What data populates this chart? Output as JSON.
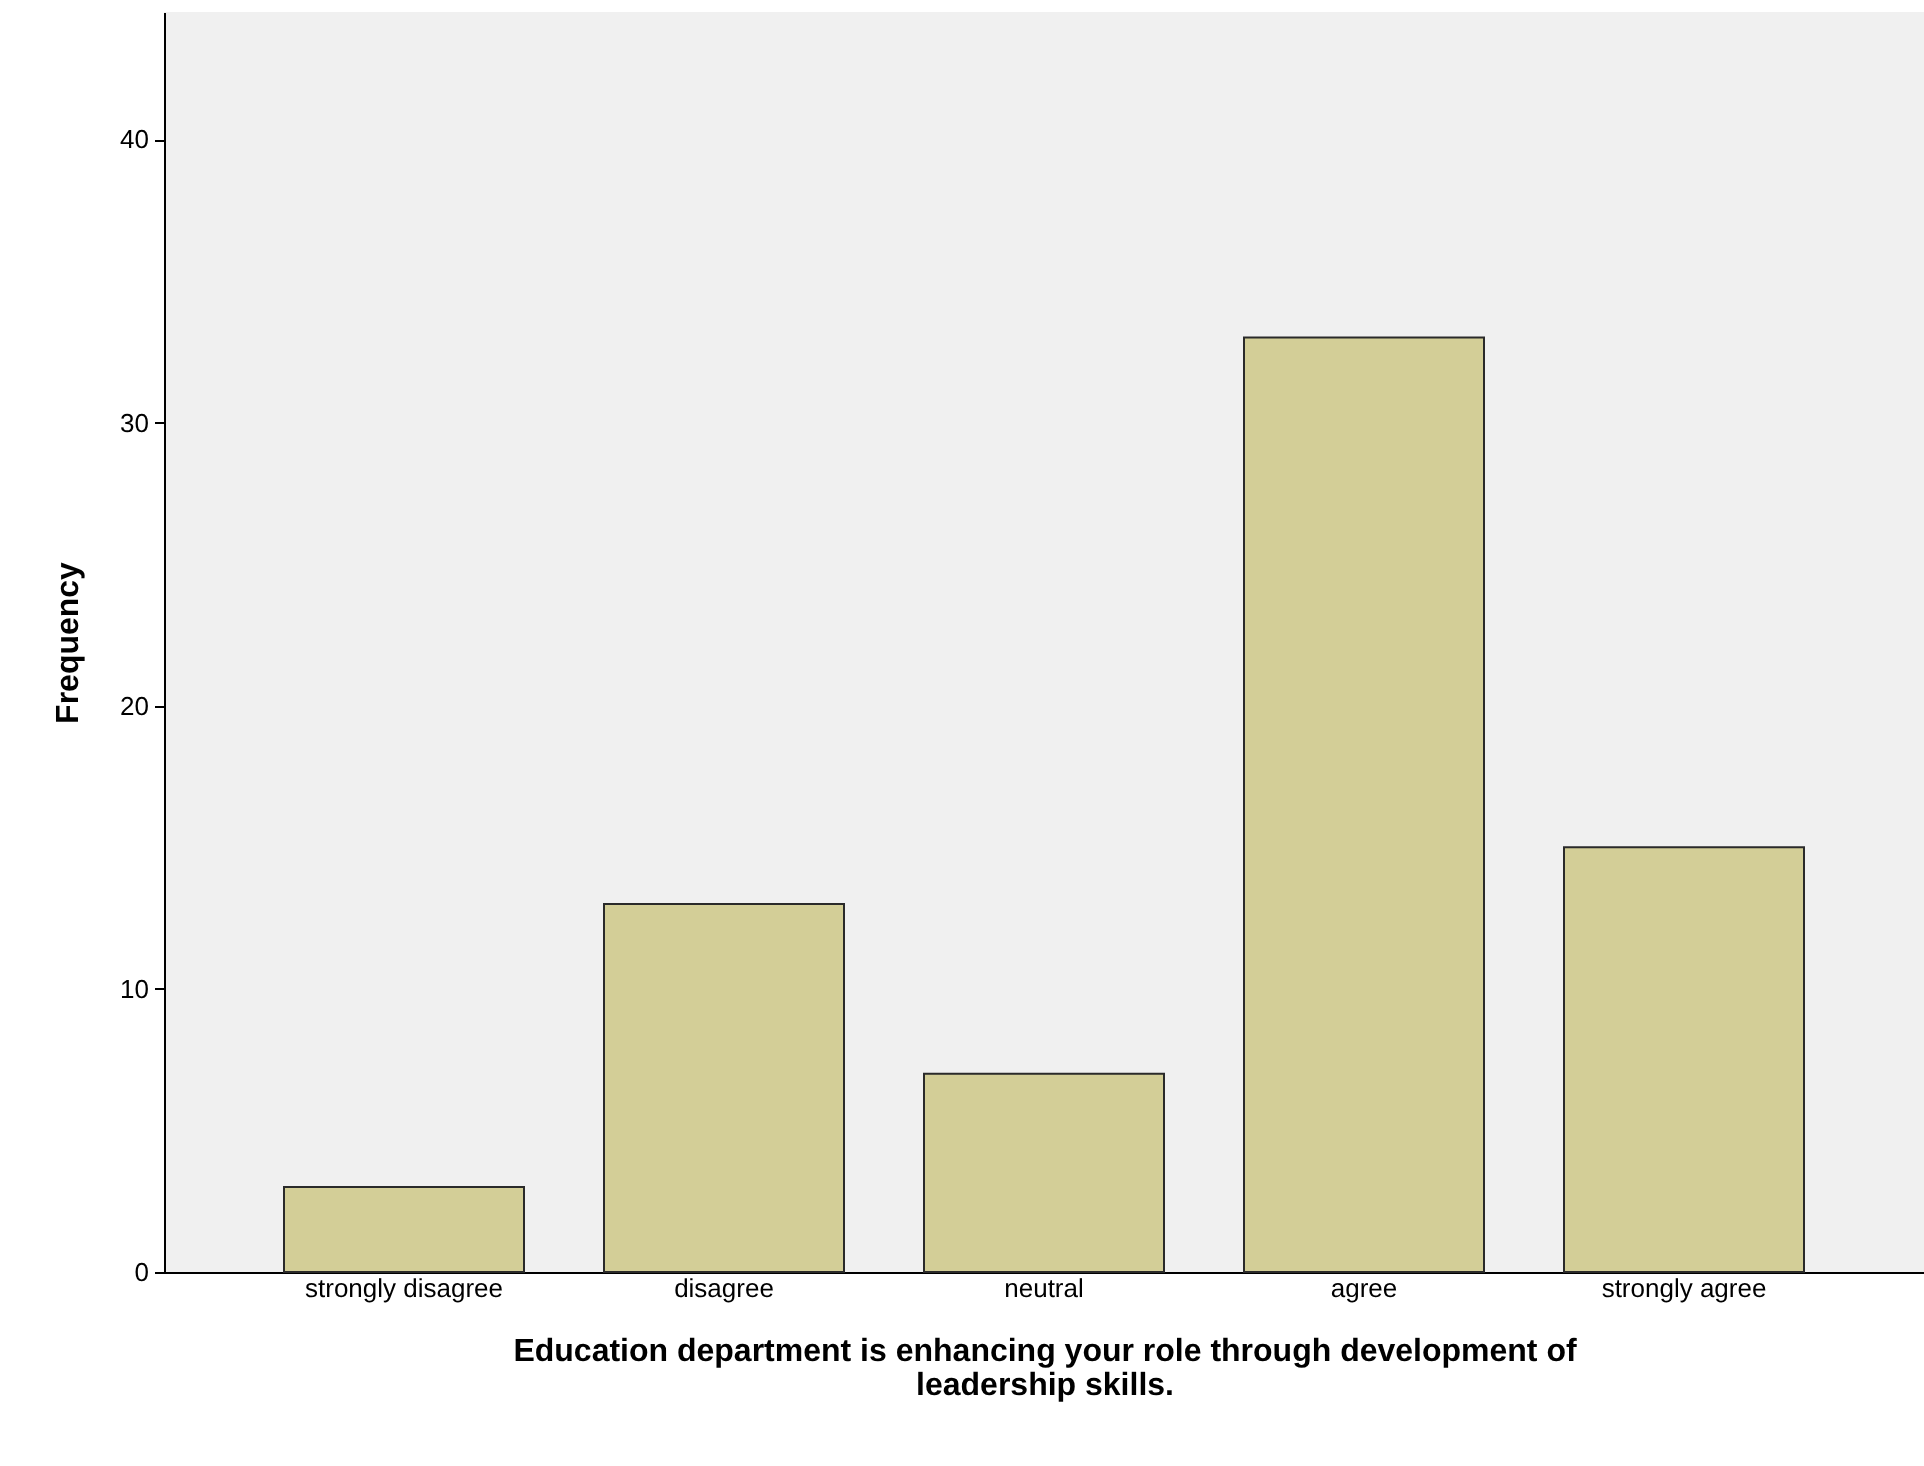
{
  "chart_data": {
    "type": "bar",
    "xlabel": "Education department is enhancing your role through development of leadership skills.",
    "ylabel": "Frequency",
    "categories": [
      "strongly disagree",
      "disagree",
      "neutral",
      "agree",
      "strongly agree"
    ],
    "values": [
      3,
      13,
      7,
      33,
      15
    ],
    "color": "#d3ce97",
    "ylim": [
      0,
      44.5
    ],
    "yticks": [
      0,
      10,
      20,
      30,
      40
    ],
    "grid": false
  }
}
